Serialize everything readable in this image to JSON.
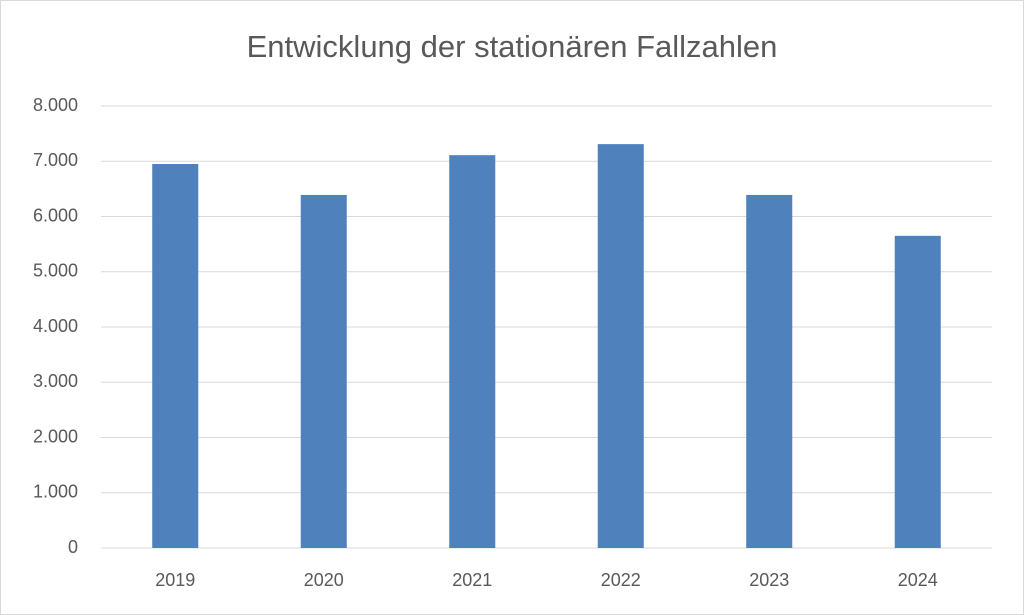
{
  "chart_data": {
    "type": "bar",
    "title": "Entwicklung der stationären Fallzahlen",
    "categories": [
      "2019",
      "2020",
      "2021",
      "2022",
      "2023",
      "2024"
    ],
    "values": [
      6950,
      6390,
      7110,
      7310,
      6390,
      5650
    ],
    "color": "#4f81bd",
    "ylim": [
      0,
      8000
    ],
    "yticks": [
      0,
      {
        "value": 1000,
        "label": "1.000"
      },
      {
        "value": 2000,
        "label": "2.000"
      },
      {
        "value": 3000,
        "label": "3.000"
      },
      {
        "value": 4000,
        "label": "4.000"
      },
      {
        "value": 5000,
        "label": "5.000"
      },
      {
        "value": 6000,
        "label": "6.000"
      },
      {
        "value": 7000,
        "label": "7.000"
      },
      {
        "value": 8000,
        "label": "8.000"
      }
    ],
    "grid": true
  }
}
